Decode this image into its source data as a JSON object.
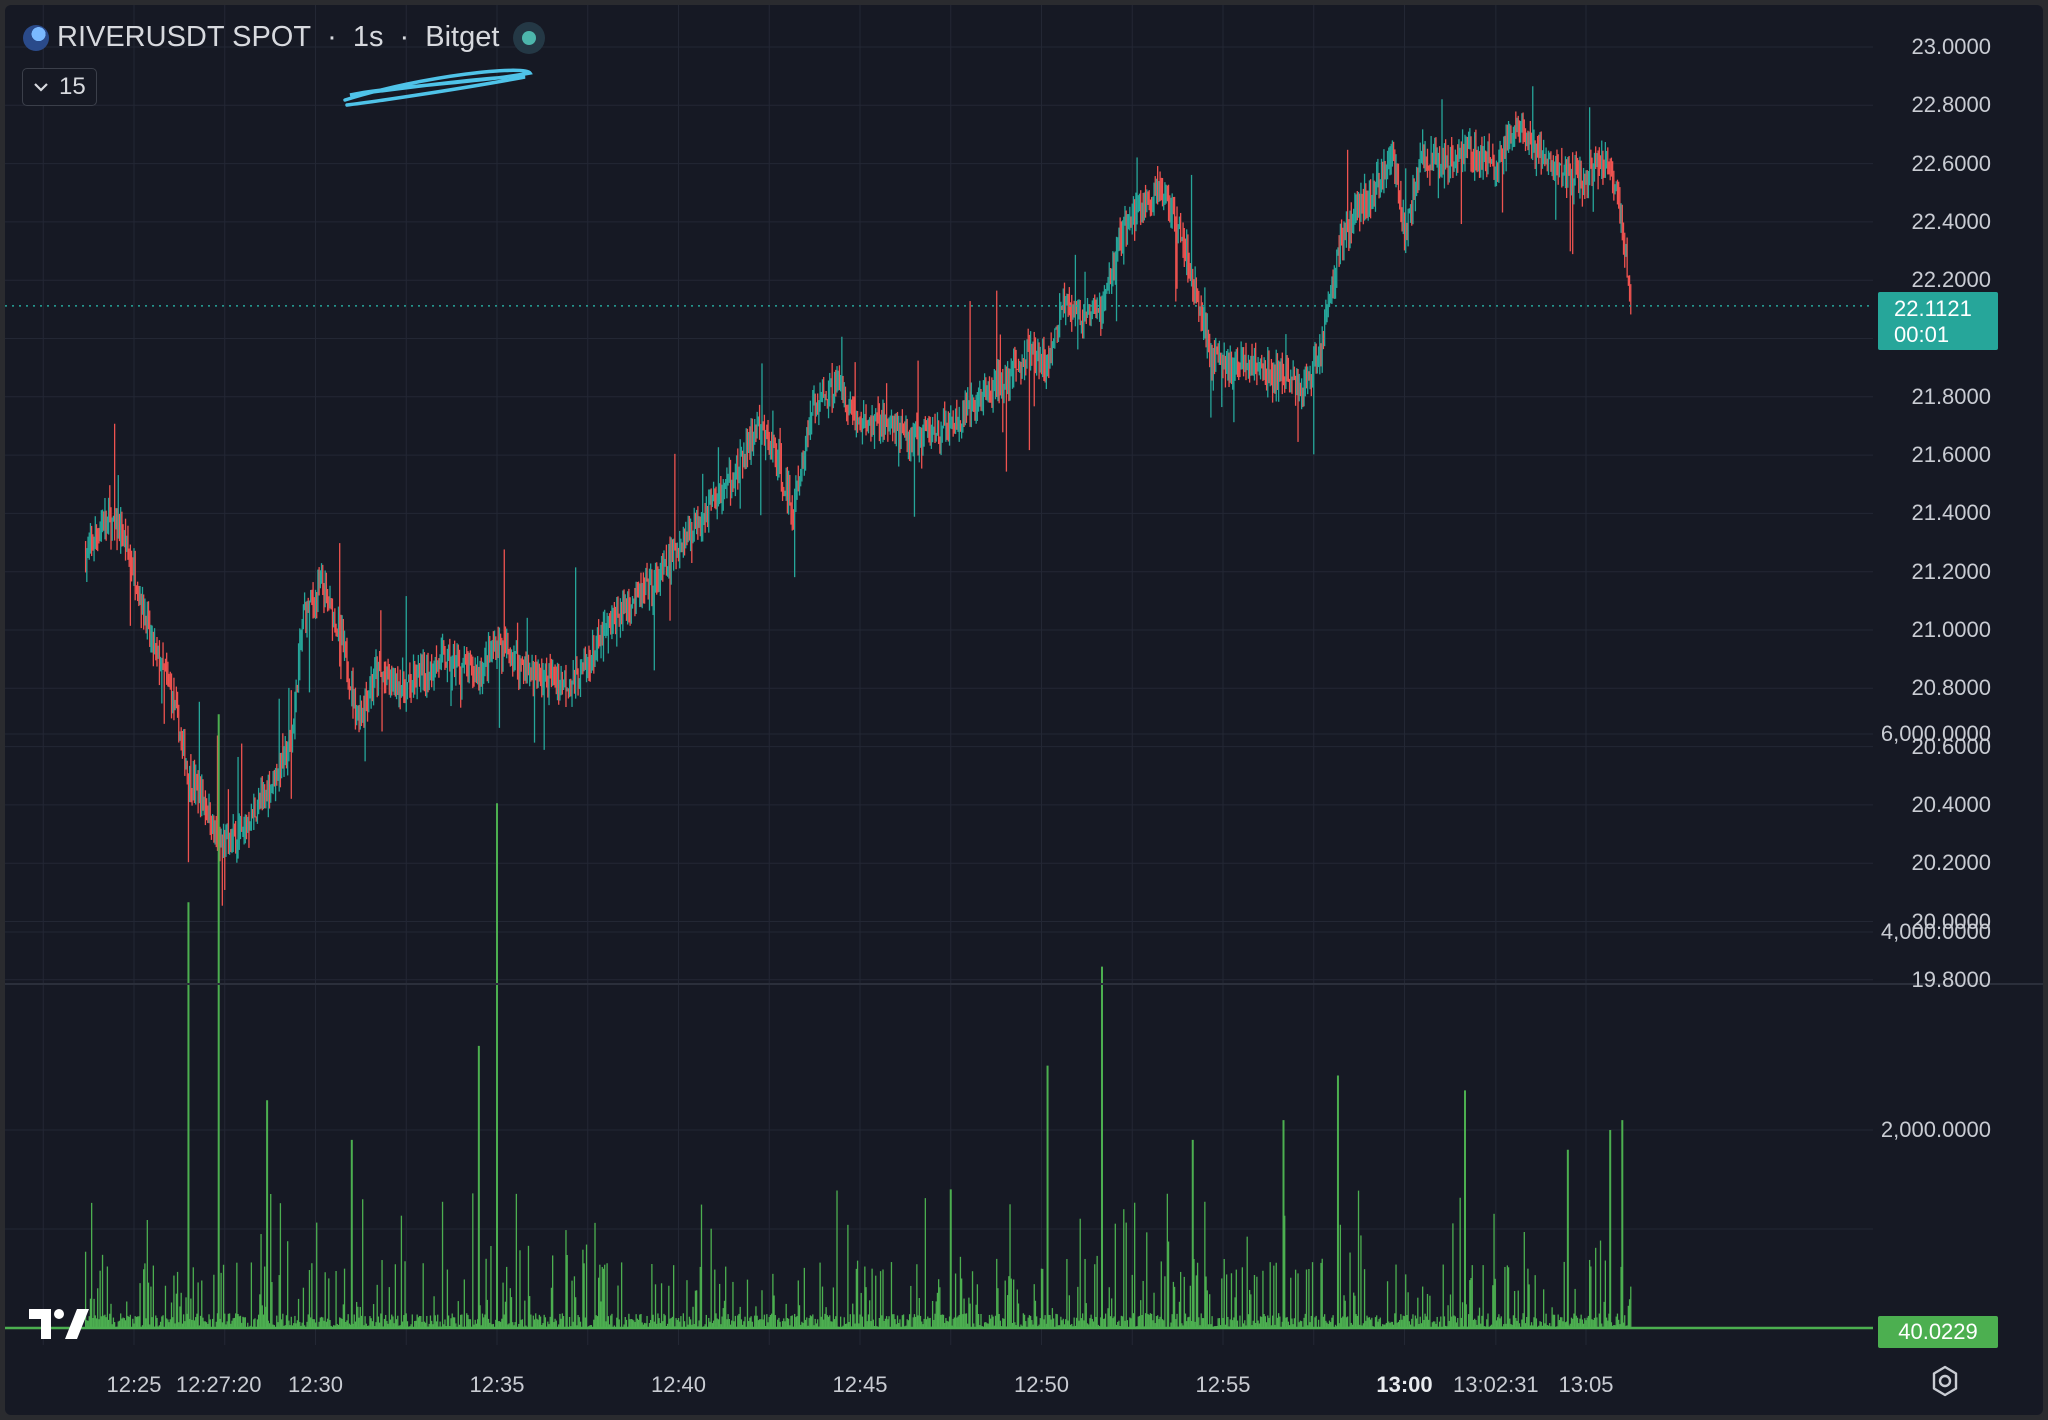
{
  "legend": {
    "symbol": "RIVERUSDT SPOT",
    "separator1": " · ",
    "interval": "1s",
    "separator2": " · ",
    "exchange": "Bitget",
    "status_icon": "live-status-dot"
  },
  "indicators_toggle": {
    "icon": "chevron-down-icon",
    "count": "15"
  },
  "colors": {
    "background": "#161924",
    "grid": "#232734",
    "up": "#26a69a",
    "down": "#ef5350",
    "volume": "#4caf50",
    "price_line": "#26a69a",
    "scribble": "#4fc3e8"
  },
  "price_axis": {
    "labels": [
      "23.0000",
      "22.8000",
      "22.6000",
      "22.4000",
      "22.2000",
      "21.8000",
      "21.6000",
      "21.4000",
      "21.2000",
      "21.0000",
      "20.8000",
      "20.6000",
      "20.4000",
      "20.2000",
      "20.0000",
      "19.8000"
    ]
  },
  "last_price": {
    "value": "22.1121",
    "countdown": "00:01"
  },
  "volume_axis": {
    "labels": [
      "6,000.0000",
      "4,000.0000",
      "2,000.0000"
    ],
    "last_value": "40.0229"
  },
  "time_axis": {
    "labels": [
      {
        "text": "12:25",
        "bold": false
      },
      {
        "text": "12:27:20",
        "bold": false
      },
      {
        "text": "12:30",
        "bold": false
      },
      {
        "text": "12:35",
        "bold": false
      },
      {
        "text": "12:40",
        "bold": false
      },
      {
        "text": "12:45",
        "bold": false
      },
      {
        "text": "12:50",
        "bold": false
      },
      {
        "text": "12:55",
        "bold": false
      },
      {
        "text": "13:00",
        "bold": true
      },
      {
        "text": "13:02:31",
        "bold": false
      },
      {
        "text": "13:05",
        "bold": false
      }
    ]
  },
  "brand_logo": "tradingview-logo",
  "settings_icon": "gear-icon",
  "chart_data": {
    "type": "candlestick",
    "interval": "1s",
    "price_ylim": [
      19.8,
      23.0
    ],
    "volume_ylim": [
      0,
      6000
    ],
    "grid": true,
    "price_path": [
      [
        "12:23:40",
        21.25
      ],
      [
        "12:24:10",
        21.38
      ],
      [
        "12:24:40",
        21.33
      ],
      [
        "12:25:00",
        21.2
      ],
      [
        "12:25:30",
        20.95
      ],
      [
        "12:26:00",
        20.8
      ],
      [
        "12:26:30",
        20.5
      ],
      [
        "12:27:00",
        20.4
      ],
      [
        "12:27:20",
        20.25
      ],
      [
        "12:28:00",
        20.3
      ],
      [
        "12:28:40",
        20.45
      ],
      [
        "12:29:20",
        20.6
      ],
      [
        "12:29:40",
        21.05
      ],
      [
        "12:30:10",
        21.15
      ],
      [
        "12:30:40",
        21.0
      ],
      [
        "12:31:10",
        20.7
      ],
      [
        "12:31:40",
        20.85
      ],
      [
        "12:32:30",
        20.8
      ],
      [
        "12:33:30",
        20.9
      ],
      [
        "12:34:30",
        20.85
      ],
      [
        "12:35:00",
        20.95
      ],
      [
        "12:35:30",
        20.9
      ],
      [
        "12:36:00",
        20.85
      ],
      [
        "12:37:00",
        20.82
      ],
      [
        "12:37:30",
        20.88
      ],
      [
        "12:38:00",
        21.0
      ],
      [
        "12:38:40",
        21.1
      ],
      [
        "12:39:20",
        21.15
      ],
      [
        "12:39:50",
        21.25
      ],
      [
        "12:40:20",
        21.35
      ],
      [
        "12:41:00",
        21.45
      ],
      [
        "12:41:40",
        21.55
      ],
      [
        "12:42:10",
        21.7
      ],
      [
        "12:42:40",
        21.6
      ],
      [
        "12:43:10",
        21.4
      ],
      [
        "12:43:40",
        21.75
      ],
      [
        "12:44:20",
        21.85
      ],
      [
        "12:45:00",
        21.7
      ],
      [
        "12:45:40",
        21.72
      ],
      [
        "12:46:20",
        21.65
      ],
      [
        "12:47:00",
        21.68
      ],
      [
        "12:47:40",
        21.7
      ],
      [
        "12:48:20",
        21.8
      ],
      [
        "12:49:00",
        21.85
      ],
      [
        "12:49:40",
        21.95
      ],
      [
        "12:50:10",
        21.9
      ],
      [
        "12:50:40",
        22.15
      ],
      [
        "12:51:10",
        22.05
      ],
      [
        "12:51:40",
        22.1
      ],
      [
        "12:52:10",
        22.35
      ],
      [
        "12:52:40",
        22.45
      ],
      [
        "12:53:10",
        22.5
      ],
      [
        "12:53:40",
        22.45
      ],
      [
        "12:54:10",
        22.2
      ],
      [
        "12:54:40",
        21.95
      ],
      [
        "12:55:10",
        21.9
      ],
      [
        "12:55:40",
        21.92
      ],
      [
        "12:56:10",
        21.88
      ],
      [
        "12:56:40",
        21.87
      ],
      [
        "12:57:10",
        21.82
      ],
      [
        "12:57:40",
        21.95
      ],
      [
        "12:58:10",
        22.3
      ],
      [
        "12:58:40",
        22.45
      ],
      [
        "12:59:10",
        22.5
      ],
      [
        "12:59:40",
        22.65
      ],
      [
        "13:00:00",
        22.35
      ],
      [
        "13:00:30",
        22.62
      ],
      [
        "13:01:00",
        22.6
      ],
      [
        "13:01:40",
        22.65
      ],
      [
        "13:02:10",
        22.62
      ],
      [
        "13:02:31",
        22.58
      ],
      [
        "13:03:00",
        22.72
      ],
      [
        "13:03:30",
        22.65
      ],
      [
        "13:04:00",
        22.6
      ],
      [
        "13:04:30",
        22.55
      ],
      [
        "13:05:00",
        22.55
      ],
      [
        "13:05:20",
        22.62
      ],
      [
        "13:05:40",
        22.6
      ],
      [
        "13:06:00",
        22.4
      ],
      [
        "13:06:15",
        22.1121
      ]
    ],
    "volume_spikes": [
      [
        "12:26:30",
        4300
      ],
      [
        "12:27:20",
        6200
      ],
      [
        "12:28:40",
        2300
      ],
      [
        "12:31:00",
        1900
      ],
      [
        "12:34:30",
        2850
      ],
      [
        "12:35:00",
        5300
      ],
      [
        "12:47:30",
        1400
      ],
      [
        "12:50:10",
        2650
      ],
      [
        "12:51:40",
        3650
      ],
      [
        "12:54:10",
        1900
      ],
      [
        "12:56:40",
        2100
      ],
      [
        "12:58:10",
        2550
      ],
      [
        "13:01:40",
        2400
      ],
      [
        "13:04:30",
        1800
      ],
      [
        "13:05:40",
        2000
      ],
      [
        "13:06:00",
        2100
      ]
    ]
  }
}
